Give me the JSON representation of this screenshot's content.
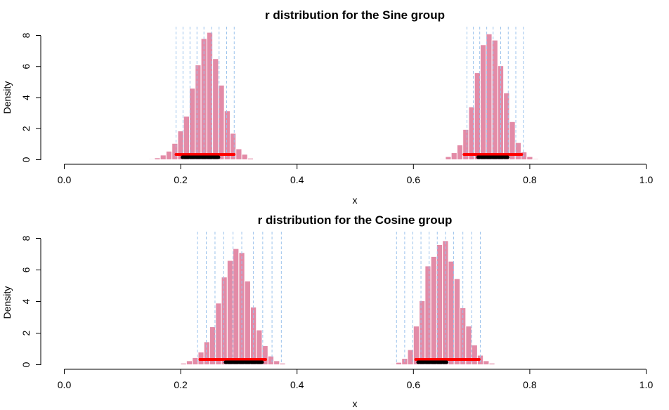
{
  "chart_data": [
    {
      "type": "histogram",
      "title": "r distribution for the Sine group",
      "xlabel": "x",
      "ylabel": "Density",
      "xlim": [
        0,
        1
      ],
      "ylim": [
        0,
        8
      ],
      "xticks": [
        "0.0",
        "0.2",
        "0.4",
        "0.6",
        "0.8",
        "1.0"
      ],
      "yticks": [
        "0",
        "2",
        "4",
        "6",
        "8"
      ],
      "grid": false,
      "bar_color": "#e38ba7",
      "dashed_line_color": "#9cc3ec",
      "interval_outer_color": "#ff0000",
      "interval_inner_color": "#000000",
      "clusters": [
        {
          "bins": [
            {
              "x": 0.15,
              "d": 0.05
            },
            {
              "x": 0.16,
              "d": 0.12
            },
            {
              "x": 0.17,
              "d": 0.3
            },
            {
              "x": 0.18,
              "d": 0.55
            },
            {
              "x": 0.19,
              "d": 1.05
            },
            {
              "x": 0.2,
              "d": 1.85
            },
            {
              "x": 0.21,
              "d": 2.8
            },
            {
              "x": 0.22,
              "d": 4.6
            },
            {
              "x": 0.23,
              "d": 6.1
            },
            {
              "x": 0.24,
              "d": 7.8
            },
            {
              "x": 0.25,
              "d": 8.2
            },
            {
              "x": 0.26,
              "d": 6.5
            },
            {
              "x": 0.27,
              "d": 4.8
            },
            {
              "x": 0.28,
              "d": 3.15
            },
            {
              "x": 0.29,
              "d": 1.7
            },
            {
              "x": 0.3,
              "d": 0.7
            },
            {
              "x": 0.31,
              "d": 0.35
            },
            {
              "x": 0.32,
              "d": 0.1
            },
            {
              "x": 0.33,
              "d": 0.04
            }
          ],
          "dashed_lines": [
            0.192,
            0.204,
            0.216,
            0.228,
            0.24,
            0.253,
            0.266,
            0.279,
            0.292
          ],
          "interval_outer": [
            0.192,
            0.292
          ],
          "interval_inner": [
            0.203,
            0.265
          ]
        },
        {
          "bins": [
            {
              "x": 0.65,
              "d": 0.05
            },
            {
              "x": 0.66,
              "d": 0.2
            },
            {
              "x": 0.67,
              "d": 0.45
            },
            {
              "x": 0.68,
              "d": 0.95
            },
            {
              "x": 0.69,
              "d": 1.95
            },
            {
              "x": 0.7,
              "d": 3.4
            },
            {
              "x": 0.71,
              "d": 5.6
            },
            {
              "x": 0.72,
              "d": 7.4
            },
            {
              "x": 0.73,
              "d": 8.1
            },
            {
              "x": 0.74,
              "d": 7.7
            },
            {
              "x": 0.75,
              "d": 6.05
            },
            {
              "x": 0.76,
              "d": 4.3
            },
            {
              "x": 0.77,
              "d": 2.45
            },
            {
              "x": 0.78,
              "d": 1.1
            },
            {
              "x": 0.79,
              "d": 0.5
            },
            {
              "x": 0.8,
              "d": 0.2
            },
            {
              "x": 0.81,
              "d": 0.06
            }
          ],
          "dashed_lines": [
            0.692,
            0.703,
            0.714,
            0.726,
            0.737,
            0.75,
            0.763,
            0.776,
            0.789
          ],
          "interval_outer": [
            0.687,
            0.786
          ],
          "interval_inner": [
            0.711,
            0.762
          ]
        }
      ]
    },
    {
      "type": "histogram",
      "title": "r distribution for the Cosine group",
      "xlabel": "x",
      "ylabel": "Density",
      "xlim": [
        0,
        1
      ],
      "ylim": [
        0,
        8
      ],
      "xticks": [
        "0.0",
        "0.2",
        "0.4",
        "0.6",
        "0.8",
        "1.0"
      ],
      "yticks": [
        "0",
        "2",
        "4",
        "6",
        "8"
      ],
      "grid": false,
      "bar_color": "#e38ba7",
      "dashed_line_color": "#9cc3ec",
      "interval_outer_color": "#ff0000",
      "interval_inner_color": "#000000",
      "clusters": [
        {
          "bins": [
            {
              "x": 0.195,
              "d": 0.04
            },
            {
              "x": 0.205,
              "d": 0.1
            },
            {
              "x": 0.215,
              "d": 0.25
            },
            {
              "x": 0.225,
              "d": 0.45
            },
            {
              "x": 0.235,
              "d": 0.8
            },
            {
              "x": 0.245,
              "d": 1.45
            },
            {
              "x": 0.255,
              "d": 2.4
            },
            {
              "x": 0.265,
              "d": 3.9
            },
            {
              "x": 0.275,
              "d": 5.55
            },
            {
              "x": 0.285,
              "d": 6.6
            },
            {
              "x": 0.295,
              "d": 7.35
            },
            {
              "x": 0.305,
              "d": 7.1
            },
            {
              "x": 0.315,
              "d": 5.3
            },
            {
              "x": 0.325,
              "d": 3.65
            },
            {
              "x": 0.335,
              "d": 2.2
            },
            {
              "x": 0.345,
              "d": 1.2
            },
            {
              "x": 0.355,
              "d": 0.55
            },
            {
              "x": 0.365,
              "d": 0.25
            },
            {
              "x": 0.375,
              "d": 0.1
            }
          ],
          "dashed_lines": [
            0.229,
            0.244,
            0.259,
            0.274,
            0.29,
            0.305,
            0.325,
            0.341,
            0.357,
            0.373
          ],
          "interval_outer": [
            0.233,
            0.346
          ],
          "interval_inner": [
            0.277,
            0.34
          ]
        },
        {
          "bins": [
            {
              "x": 0.565,
              "d": 0.05
            },
            {
              "x": 0.575,
              "d": 0.15
            },
            {
              "x": 0.585,
              "d": 0.4
            },
            {
              "x": 0.595,
              "d": 0.95
            },
            {
              "x": 0.605,
              "d": 2.45
            },
            {
              "x": 0.615,
              "d": 4.05
            },
            {
              "x": 0.625,
              "d": 6.25
            },
            {
              "x": 0.635,
              "d": 6.85
            },
            {
              "x": 0.645,
              "d": 7.6
            },
            {
              "x": 0.655,
              "d": 7.85
            },
            {
              "x": 0.665,
              "d": 6.55
            },
            {
              "x": 0.675,
              "d": 5.45
            },
            {
              "x": 0.685,
              "d": 3.6
            },
            {
              "x": 0.695,
              "d": 2.45
            },
            {
              "x": 0.705,
              "d": 1.25
            },
            {
              "x": 0.715,
              "d": 0.6
            },
            {
              "x": 0.725,
              "d": 0.25
            },
            {
              "x": 0.735,
              "d": 0.1
            },
            {
              "x": 0.745,
              "d": 0.04
            }
          ],
          "dashed_lines": [
            0.571,
            0.585,
            0.599,
            0.613,
            0.627,
            0.641,
            0.655,
            0.669,
            0.685,
            0.7,
            0.715
          ],
          "interval_outer": [
            0.604,
            0.713
          ],
          "interval_inner": [
            0.608,
            0.657
          ]
        }
      ]
    }
  ]
}
